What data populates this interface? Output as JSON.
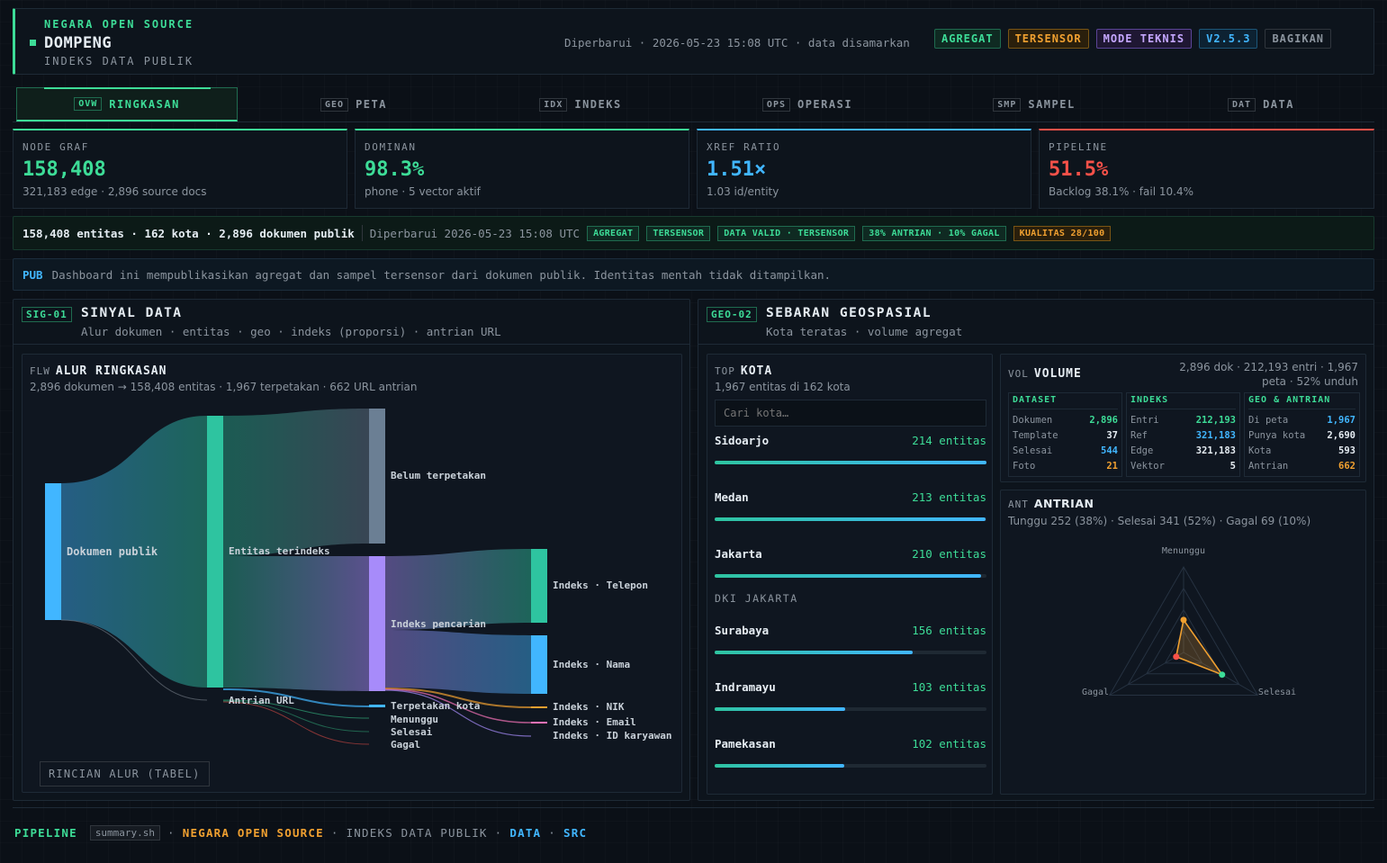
{
  "header": {
    "eyebrow": "NEGARA OPEN SOURCE",
    "title": "DOMPENG",
    "subtitle": "INDEKS DATA PUBLIK",
    "updated": "Diperbarui · 2026-05-23 15:08 UTC · data disamarkan",
    "badges": {
      "agregat": "AGREGAT",
      "tersensor": "TERSENSOR",
      "mode": "MODE TEKNIS",
      "version": "V2.5.3",
      "share": "BAGIKAN"
    }
  },
  "tabs": [
    {
      "code": "OVW",
      "label": "RINGKASAN"
    },
    {
      "code": "GEO",
      "label": "PETA"
    },
    {
      "code": "IDX",
      "label": "INDEKS"
    },
    {
      "code": "OPS",
      "label": "OPERASI"
    },
    {
      "code": "SMP",
      "label": "SAMPEL"
    },
    {
      "code": "DAT",
      "label": "DATA"
    }
  ],
  "kpis": [
    {
      "label": "NODE GRAF",
      "value": "158,408",
      "sub": "321,183 edge · 2,896 source docs",
      "color": "#3ddc97"
    },
    {
      "label": "DOMINAN",
      "value": "98.3%",
      "sub": "phone · 5 vector aktif",
      "color": "#3ddc97"
    },
    {
      "label": "XREF RATIO",
      "value": "1.51×",
      "sub": "1.03 id/entity",
      "color": "#41b6ff"
    },
    {
      "label": "PIPELINE",
      "value": "51.5%",
      "sub": "Backlog 38.1% · fail 10.4%",
      "color": "#f85149"
    }
  ],
  "status": {
    "summary": "158,408 entitas · 162 kota · 2,896 dokumen publik",
    "updated": "Diperbarui 2026-05-23 15:08 UTC",
    "chips": [
      "AGREGAT",
      "TERSENSOR",
      "DATA VALID · TERSENSOR",
      "38% ANTRIAN · 10% GAGAL",
      "KUALITAS 28/100"
    ]
  },
  "notice": {
    "code": "PUB",
    "text": "Dashboard ini mempublikasikan agregat dan sampel tersensor dari dokumen publik. Identitas mentah tidak ditampilkan."
  },
  "signal": {
    "code": "SIG-01",
    "title": "SINYAL DATA",
    "subtitle": "Alur dokumen · entitas · geo · indeks (proporsi) · antrian URL",
    "flow": {
      "code": "FLW",
      "title": "ALUR RINGKASAN",
      "sub": "2,896 dokumen → 158,408 entitas · 1,967 terpetakan · 662 URL antrian",
      "nodes": {
        "docs": "Dokumen publik",
        "ent": "Entitas terindeks",
        "queue": "Antrian URL",
        "unmapped": "Belum terpetakan",
        "search": "Indeks pencarian",
        "mapped": "Terpetakan kota",
        "wait": "Menunggu",
        "done": "Selesai",
        "fail": "Gagal",
        "phone": "Indeks · Telepon",
        "name": "Indeks · Nama",
        "nik": "Indeks · NIK",
        "email": "Indeks · Email",
        "emp": "Indeks · ID karyawan"
      },
      "table_button": "RINCIAN ALUR (TABEL)"
    }
  },
  "geo": {
    "code": "GEO-02",
    "title": "SEBARAN GEOSPASIAL",
    "subtitle": "Kota teratas · volume agregat",
    "top": {
      "code": "TOP",
      "title": "KOTA",
      "sub": "1,967 entitas di 162 kota",
      "search_placeholder": "Cari kota…",
      "group": "DKI JAKARTA",
      "cities": [
        {
          "name": "Sidoarjo",
          "count": "214 entitas",
          "value": 214
        },
        {
          "name": "Medan",
          "count": "213 entitas",
          "value": 213
        },
        {
          "name": "Jakarta",
          "count": "210 entitas",
          "value": 210
        },
        {
          "name": "Surabaya",
          "count": "156 entitas",
          "value": 156
        },
        {
          "name": "Indramayu",
          "count": "103 entitas",
          "value": 103
        },
        {
          "name": "Pamekasan",
          "count": "102 entitas",
          "value": 102
        }
      ]
    },
    "volume": {
      "code": "VOL",
      "title": "VOLUME",
      "meta": "2,896 dok · 212,193 entri · 1,967 peta · 52% unduh",
      "cols": [
        {
          "head": "DATASET",
          "rows": [
            [
              "Dokumen",
              "2,896",
              "#3ddc97"
            ],
            [
              "Template",
              "37",
              "#e6edf3"
            ],
            [
              "Selesai",
              "544",
              "#41b6ff"
            ],
            [
              "Foto",
              "21",
              "#f0a030"
            ]
          ]
        },
        {
          "head": "INDEKS",
          "rows": [
            [
              "Entri",
              "212,193",
              "#3ddc97"
            ],
            [
              "Ref",
              "321,183",
              "#41b6ff"
            ],
            [
              "Edge",
              "321,183",
              "#e6edf3"
            ],
            [
              "Vektor",
              "5",
              "#e6edf3"
            ]
          ]
        },
        {
          "head": "GEO & ANTRIAN",
          "rows": [
            [
              "Di peta",
              "1,967",
              "#41b6ff"
            ],
            [
              "Punya kota",
              "2,690",
              "#e6edf3"
            ],
            [
              "Kota",
              "593",
              "#e6edf3"
            ],
            [
              "Antrian",
              "662",
              "#f0a030"
            ]
          ]
        }
      ]
    },
    "queue": {
      "code": "ANT",
      "title": "ANTRIAN",
      "sub": "Tunggu 252 (38%) · Selesai 341 (52%) · Gagal 69 (10%)",
      "axes": [
        "Menunggu",
        "Selesai",
        "Gagal"
      ],
      "values": [
        0.38,
        0.52,
        0.1
      ]
    }
  },
  "footer": {
    "pipeline": "PIPELINE",
    "file": "summary.sh",
    "org": "NEGARA OPEN SOURCE",
    "idx": "INDEKS DATA PUBLIK",
    "data": "DATA",
    "src": "SRC"
  },
  "colors": {
    "accent": "#3ddc97",
    "blue": "#41b6ff",
    "red": "#f85149",
    "amber": "#f0a030",
    "violet": "#a78bfa"
  }
}
